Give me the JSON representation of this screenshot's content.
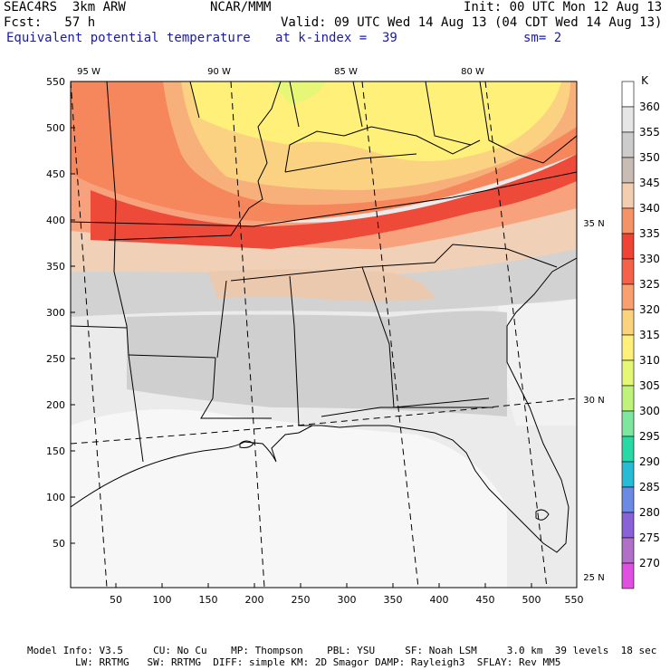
{
  "header": {
    "left_line1": "SEAC4RS  3km ARW",
    "center_line1": "NCAR/MMM",
    "right_line1": "Init: 00 UTC Mon 12 Aug 13",
    "left_line2": "Fcst:   57 h",
    "right_line2": "Valid: 09 UTC Wed 14 Aug 13 (04 CDT Wed 14 Aug 13)",
    "field_name": "Equivalent potential temperature",
    "k_index": "at k-index =  39",
    "smoothing": "sm= 2"
  },
  "map": {
    "x_ticks": [
      "50",
      "100",
      "150",
      "200",
      "250",
      "300",
      "350",
      "400",
      "450",
      "500",
      "550"
    ],
    "y_ticks": [
      "550",
      "500",
      "450",
      "400",
      "350",
      "300",
      "250",
      "200",
      "150",
      "100",
      "50"
    ],
    "lon_labels": [
      "95 W",
      "90 W",
      "85 W",
      "80 W"
    ],
    "lat_labels": [
      "35 N",
      "30 N",
      "25 N"
    ]
  },
  "colorbar": {
    "unit": "K",
    "levels": [
      "360",
      "355",
      "350",
      "345",
      "340",
      "335",
      "330",
      "325",
      "320",
      "315",
      "310",
      "305",
      "300",
      "295",
      "290",
      "285",
      "280",
      "275",
      "270"
    ],
    "colors": [
      "#ffffff",
      "#e6e6e6",
      "#cccccc",
      "#c8bcb4",
      "#f2cdb0",
      "#f49268",
      "#ee4436",
      "#f5624a",
      "#f8a070",
      "#fbd27e",
      "#fef07a",
      "#e6f676",
      "#bff27a",
      "#7fe6a0",
      "#28d9a6",
      "#28bcd4",
      "#6a8ae4",
      "#8a62d8",
      "#b070c8",
      "#e050e0"
    ]
  },
  "footer": {
    "line1": "Model Info: V3.5     CU: No Cu    MP: Thompson    PBL: YSU     SF: Noah LSM     3.0 km  39 levels  18 sec",
    "line2": "        LW: RRTMG   SW: RRTMG  DIFF: simple KM: 2D Smagor DAMP: Rayleigh3  SFLAY: Rev MM5"
  }
}
